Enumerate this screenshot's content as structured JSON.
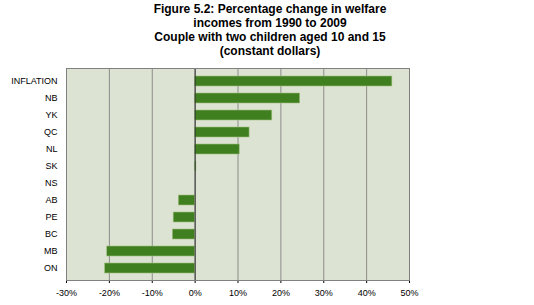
{
  "chart_data": {
    "type": "bar",
    "orientation": "horizontal",
    "title": "Figure 5.2: Percentage change in welfare incomes from 1990 to 2009",
    "subtitle": "Couple with two children aged 10 and 15 (constant dollars)",
    "categories": [
      "INFLATION",
      "NB",
      "YK",
      "QC",
      "NL",
      "SK",
      "NS",
      "AB",
      "PE",
      "BC",
      "MB",
      "ON"
    ],
    "values": [
      46,
      24.5,
      18,
      12.7,
      10.4,
      0.3,
      0,
      -3.8,
      -5,
      -5.2,
      -20.5,
      -21
    ],
    "color": "#3f7f1f",
    "xlim": [
      -30,
      50
    ],
    "xticks": [
      {
        "value": -30,
        "label": "-30%"
      },
      {
        "value": -20,
        "label": "-20%"
      },
      {
        "value": -10,
        "label": "-10%"
      },
      {
        "value": 0,
        "label": "0%"
      },
      {
        "value": 10,
        "label": "10%"
      },
      {
        "value": 20,
        "label": "20%"
      },
      {
        "value": 30,
        "label": "30%"
      },
      {
        "value": 40,
        "label": "40%"
      },
      {
        "value": 50,
        "label": "50%"
      }
    ],
    "grid": true
  }
}
